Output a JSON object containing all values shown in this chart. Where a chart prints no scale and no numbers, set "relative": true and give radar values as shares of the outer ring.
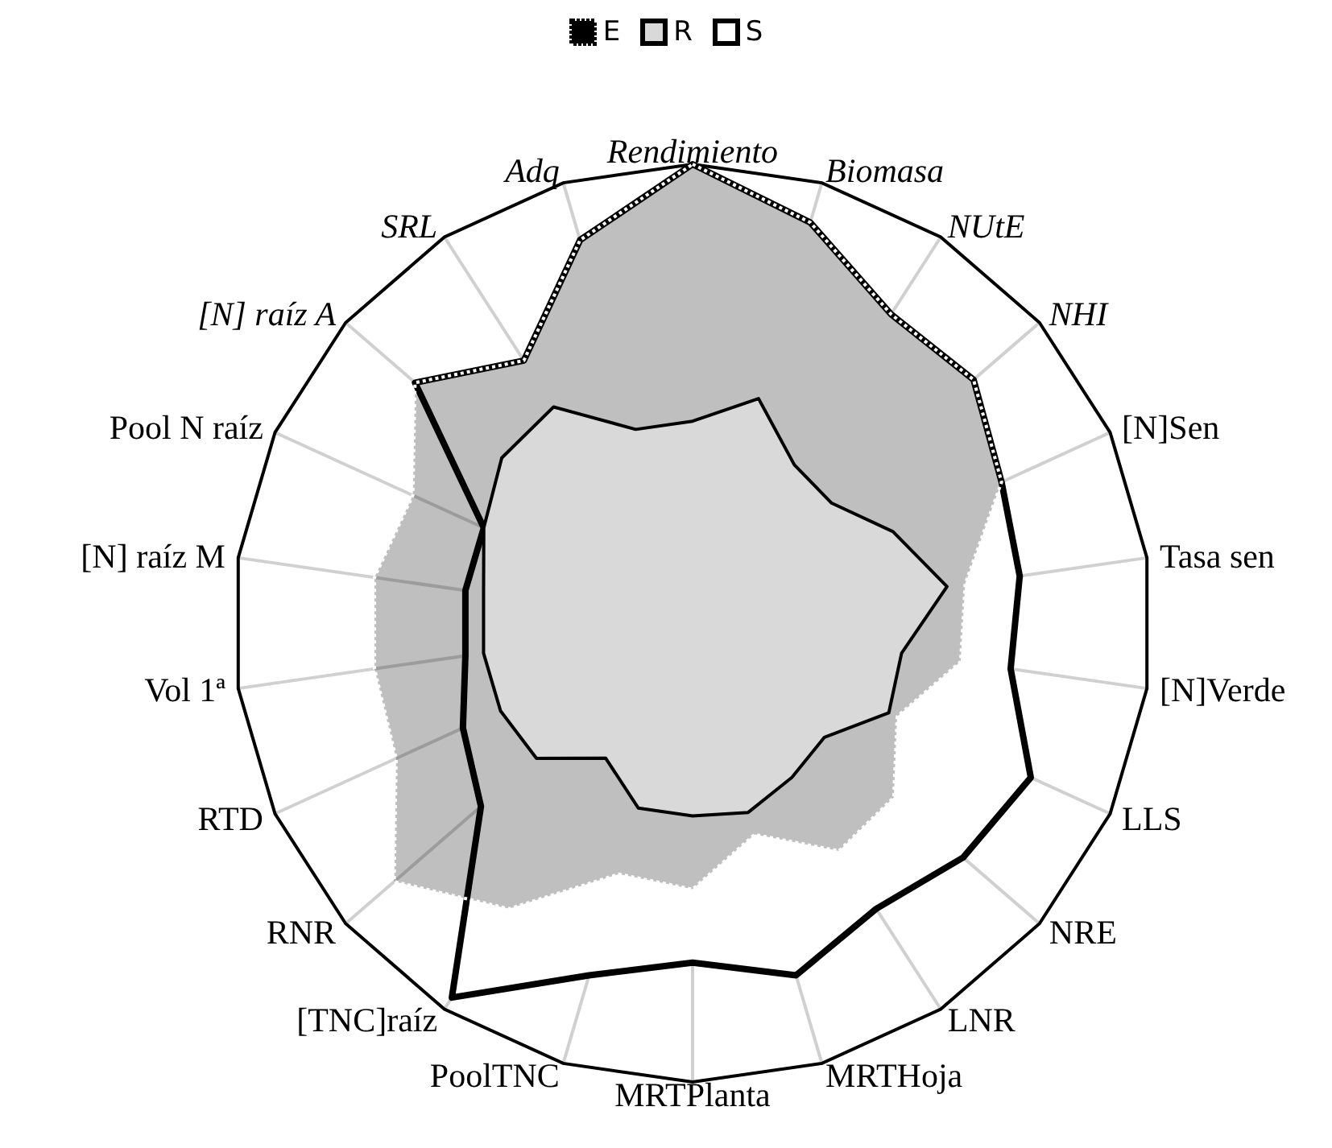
{
  "chart_data": {
    "type": "radar",
    "relative": true,
    "grid": true,
    "legend": "top",
    "categories": [
      "Rendimiento",
      "Biomasa",
      "NUtE",
      "NHI",
      "[N]Sen",
      "Tasa sen",
      "[N]Verde",
      "LLS",
      "NRE",
      "LNR",
      "MRTHoja",
      "MRTPlanta",
      "PoolTNC",
      "[TNC]raíz",
      "RNR",
      "RTD",
      "Vol 1ª",
      "[N] raíz M",
      "Pool N raíz",
      "[N] raíz A",
      "SRL",
      "Adq"
    ],
    "series": [
      {
        "name": "E",
        "color": "#000000",
        "values": [
          1.0,
          0.91,
          0.8,
          0.81,
          0.74,
          0.6,
          0.59,
          0.49,
          0.58,
          0.59,
          0.48,
          0.58,
          0.57,
          0.74,
          0.86,
          0.71,
          0.7,
          0.7,
          0.67,
          0.8,
          0.68,
          0.87
        ]
      },
      {
        "name": "R",
        "color": "#d9d9d9",
        "values": [
          0.44,
          0.51,
          0.41,
          0.4,
          0.48,
          0.56,
          0.46,
          0.47,
          0.38,
          0.4,
          0.43,
          0.42,
          0.42,
          0.35,
          0.45,
          0.46,
          0.46,
          0.46,
          0.5,
          0.55,
          0.56,
          0.44
        ]
      },
      {
        "name": "S",
        "color": "#ffffff",
        "values": [
          1.0,
          0.91,
          0.8,
          0.81,
          0.74,
          0.72,
          0.7,
          0.81,
          0.78,
          0.74,
          0.8,
          0.74,
          0.8,
          0.97,
          0.61,
          0.55,
          0.5,
          0.5,
          0.5,
          0.8,
          0.68,
          0.87
        ]
      }
    ]
  }
}
